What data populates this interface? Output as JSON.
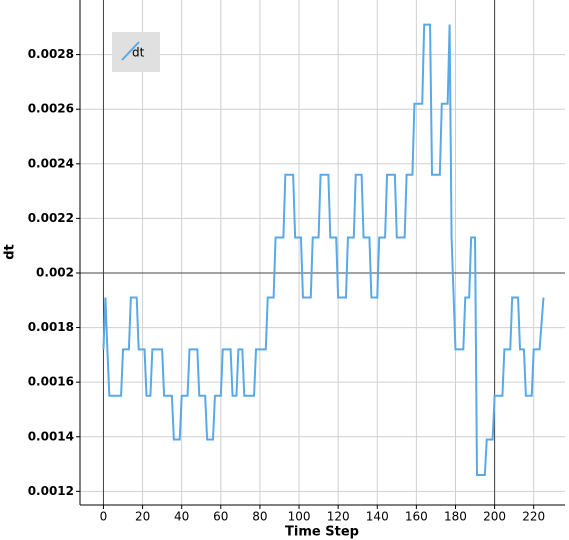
{
  "chart_data": {
    "type": "line",
    "xlabel": "Time Step",
    "ylabel": "dt",
    "xlim": [
      -12,
      236
    ],
    "ylim": [
      0.00115,
      0.003
    ],
    "xticks": [
      0,
      20,
      40,
      60,
      80,
      100,
      120,
      140,
      160,
      180,
      200,
      220
    ],
    "yticks": [
      0.0012,
      0.0014,
      0.0016,
      0.0018,
      0.002,
      0.0022,
      0.0024,
      0.0026,
      0.0028
    ],
    "grid": true,
    "legend": "upper left",
    "reference_lines": {
      "x": [
        0,
        200
      ],
      "y": [
        0.002
      ]
    },
    "x": [
      0,
      1,
      2,
      3,
      9,
      10,
      13,
      14,
      17,
      18,
      21,
      22,
      24,
      25,
      30,
      31,
      35,
      36,
      39,
      40,
      43,
      44,
      48,
      49,
      52,
      53,
      56,
      57,
      60,
      61,
      65,
      66,
      68,
      69,
      71,
      72,
      77,
      78,
      83,
      84,
      87,
      88,
      92,
      93,
      97,
      98,
      101,
      102,
      106,
      107,
      110,
      111,
      115,
      116,
      119,
      120,
      124,
      125,
      128,
      129,
      132,
      133,
      136,
      137,
      140,
      141,
      144,
      145,
      149,
      150,
      154,
      155,
      158,
      159,
      163,
      164,
      167,
      168,
      172,
      173,
      176,
      177,
      178,
      180,
      184,
      185,
      187,
      188,
      190,
      191,
      195,
      196,
      199,
      200,
      204,
      205,
      208,
      209,
      212,
      213,
      215,
      216,
      219,
      220,
      223,
      225
    ],
    "series": [
      {
        "name": "dt",
        "color": "#5aa9e6",
        "values": [
          0.00172,
          0.00191,
          0.00172,
          0.00155,
          0.00155,
          0.00172,
          0.00172,
          0.00191,
          0.00191,
          0.00172,
          0.00172,
          0.00155,
          0.00155,
          0.00172,
          0.00172,
          0.00155,
          0.00155,
          0.00139,
          0.00139,
          0.00155,
          0.00155,
          0.00172,
          0.00172,
          0.00155,
          0.00155,
          0.00139,
          0.00139,
          0.00155,
          0.00155,
          0.00172,
          0.00172,
          0.00155,
          0.00155,
          0.00172,
          0.00172,
          0.00155,
          0.00155,
          0.00172,
          0.00172,
          0.00191,
          0.00191,
          0.00213,
          0.00213,
          0.00236,
          0.00236,
          0.00213,
          0.00213,
          0.00191,
          0.00191,
          0.00213,
          0.00213,
          0.00236,
          0.00236,
          0.00213,
          0.00213,
          0.00191,
          0.00191,
          0.00213,
          0.00213,
          0.00236,
          0.00236,
          0.00213,
          0.00213,
          0.00191,
          0.00191,
          0.00213,
          0.00213,
          0.00236,
          0.00236,
          0.00213,
          0.00213,
          0.00236,
          0.00236,
          0.00262,
          0.00262,
          0.00291,
          0.00291,
          0.00236,
          0.00236,
          0.00262,
          0.00262,
          0.00291,
          0.00213,
          0.00172,
          0.00172,
          0.00191,
          0.00191,
          0.00213,
          0.00213,
          0.00126,
          0.00126,
          0.00139,
          0.00139,
          0.00155,
          0.00155,
          0.00172,
          0.00172,
          0.00191,
          0.00191,
          0.00172,
          0.00172,
          0.00155,
          0.00155,
          0.00172,
          0.00172,
          0.00191
        ]
      }
    ]
  }
}
